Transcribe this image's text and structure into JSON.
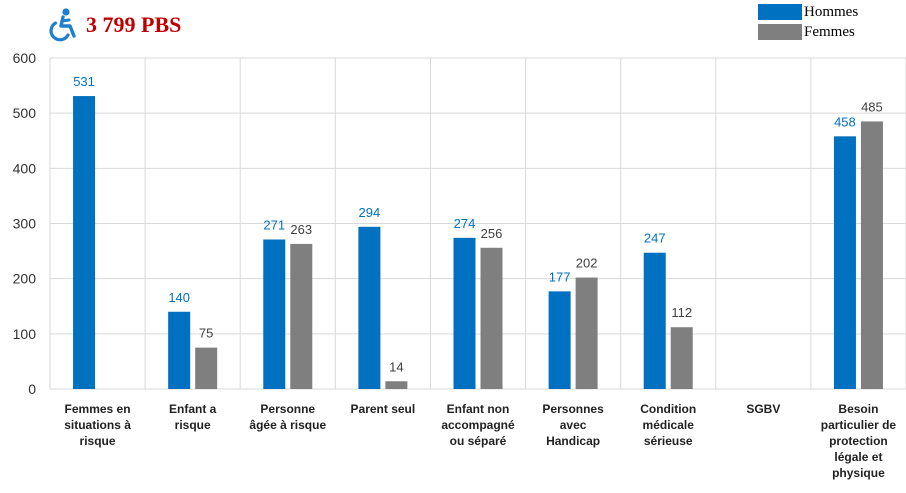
{
  "header": {
    "title": "3 799 PBS",
    "icon": "wheelchair-icon",
    "icon_color": "#1e7fd0"
  },
  "colors": {
    "hommes": "#0070c0",
    "femmes": "#7f7f7f",
    "hommes_label": "#0070c0",
    "femmes_label": "#404040"
  },
  "chart_data": {
    "type": "bar",
    "title": "",
    "xlabel": "",
    "ylabel": "",
    "ylim": [
      0,
      600
    ],
    "yticks": [
      0,
      100,
      200,
      300,
      400,
      500,
      600
    ],
    "grid": true,
    "legend_position": "top-right",
    "categories": [
      [
        "Femmes en",
        "situations à",
        "risque"
      ],
      [
        "Enfant a",
        "risque"
      ],
      [
        "Personne",
        "âgée à risque"
      ],
      [
        "Parent seul"
      ],
      [
        "Enfant non",
        "accompagné",
        "ou séparé"
      ],
      [
        "Personnes",
        "avec",
        "Handicap"
      ],
      [
        "Condition",
        "médicale",
        "sérieuse"
      ],
      [
        "SGBV"
      ],
      [
        "Besoin",
        "particulier de",
        "protection",
        "légale et",
        "physique"
      ]
    ],
    "series": [
      {
        "name": "Hommes",
        "values": [
          531,
          140,
          271,
          294,
          274,
          177,
          247,
          null,
          458
        ]
      },
      {
        "name": "Femmes",
        "values": [
          null,
          75,
          263,
          14,
          256,
          202,
          112,
          null,
          485
        ]
      }
    ]
  }
}
